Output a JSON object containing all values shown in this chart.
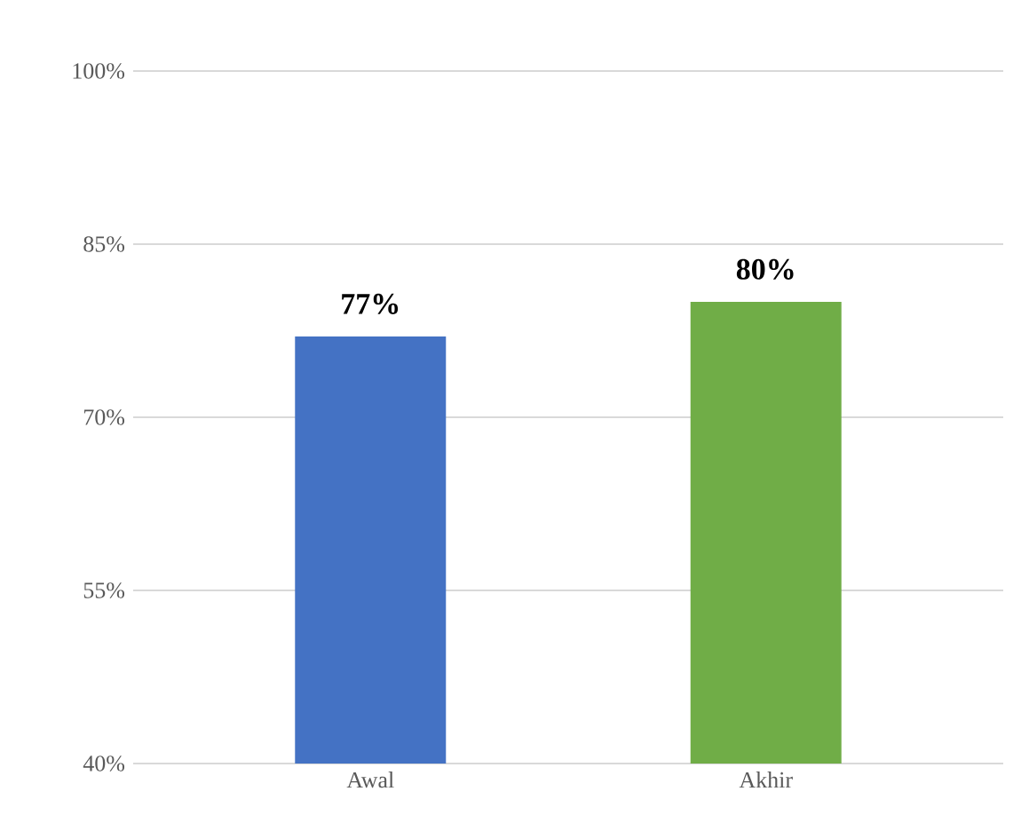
{
  "chart_data": {
    "type": "bar",
    "categories": [
      "Awal",
      "Akhir"
    ],
    "values": [
      77,
      80
    ],
    "colors": [
      "#4472c4",
      "#70ad47"
    ],
    "value_labels": [
      "77%",
      "80%"
    ],
    "ylim": [
      40,
      100
    ],
    "yticks": [
      {
        "value": 40,
        "label": "40%"
      },
      {
        "value": 55,
        "label": "55%"
      },
      {
        "value": 70,
        "label": "70%"
      },
      {
        "value": 85,
        "label": "85%"
      },
      {
        "value": 100,
        "label": "100%"
      }
    ],
    "grid": "y"
  }
}
